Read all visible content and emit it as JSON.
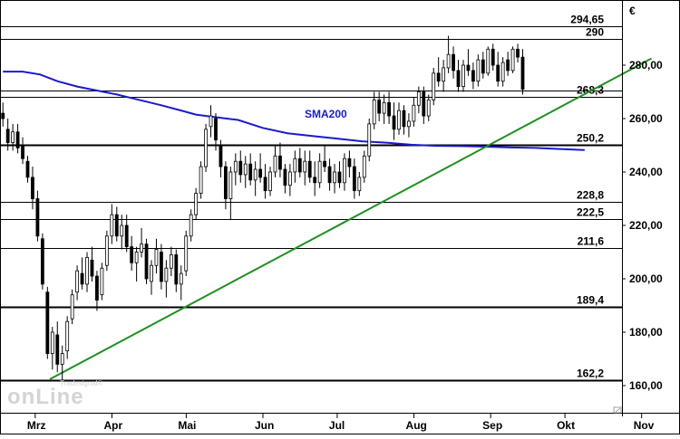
{
  "chart_data": {
    "type": "candlestick",
    "currency_label": "€",
    "y_range": [
      150,
      300
    ],
    "y_ticks": [
      {
        "value": 160,
        "label": "160,00"
      },
      {
        "value": 180,
        "label": "180,00"
      },
      {
        "value": 200,
        "label": "200,00"
      },
      {
        "value": 220,
        "label": "220,00"
      },
      {
        "value": 240,
        "label": "240,00"
      },
      {
        "value": 260,
        "label": "260,00"
      },
      {
        "value": 280,
        "label": "280,00"
      }
    ],
    "x_range_days": [
      0,
      242
    ],
    "x_ticks": [
      {
        "day": 5,
        "label": "Mrz"
      },
      {
        "day": 36,
        "label": "Apr"
      },
      {
        "day": 66,
        "label": "Mai"
      },
      {
        "day": 97,
        "label": "Jun"
      },
      {
        "day": 127,
        "label": "Jul"
      },
      {
        "day": 158,
        "label": "Aug"
      },
      {
        "day": 189,
        "label": "Sep"
      },
      {
        "day": 219,
        "label": "Okt"
      },
      {
        "day": 250,
        "label": "Nov"
      }
    ],
    "levels": [
      {
        "value": 294.65,
        "label": "294,65",
        "weight": "thin"
      },
      {
        "value": 290,
        "label": "290",
        "weight": "thin"
      },
      {
        "value": 270.5,
        "label": "",
        "weight": "thin"
      },
      {
        "value": 268.3,
        "label": "268,3",
        "weight": "thin"
      },
      {
        "value": 250.2,
        "label": "250,2",
        "weight": "thick"
      },
      {
        "value": 228.8,
        "label": "228,8",
        "weight": "thin"
      },
      {
        "value": 222.5,
        "label": "222,5",
        "weight": "thin"
      },
      {
        "value": 211.6,
        "label": "211,6",
        "weight": "thin"
      },
      {
        "value": 189.4,
        "label": "189,4",
        "weight": "thick"
      },
      {
        "value": 162.2,
        "label": "162,2",
        "weight": "thick"
      }
    ],
    "trendline": {
      "color": "#1f8f1f",
      "points": [
        {
          "day": 19,
          "value": 162.4
        },
        {
          "day": 262,
          "value": 282.5
        }
      ]
    },
    "sma200": {
      "name": "SMA200",
      "color": "#1a1acc",
      "points": [
        [
          0,
          277.6
        ],
        [
          8,
          277.6
        ],
        [
          15,
          276.5
        ],
        [
          22,
          274
        ],
        [
          30,
          272
        ],
        [
          38,
          270.5
        ],
        [
          46,
          269
        ],
        [
          55,
          267
        ],
        [
          64,
          265
        ],
        [
          72,
          263
        ],
        [
          78,
          261.5
        ],
        [
          86,
          260.5
        ],
        [
          95,
          259.5
        ],
        [
          105,
          256.5
        ],
        [
          115,
          254.5
        ],
        [
          125,
          253.5
        ],
        [
          135,
          252.5
        ],
        [
          145,
          251.5
        ],
        [
          155,
          251
        ],
        [
          165,
          250.2
        ],
        [
          175,
          249.8
        ],
        [
          185,
          249.7
        ],
        [
          195,
          249.5
        ],
        [
          205,
          249.2
        ],
        [
          215,
          249
        ],
        [
          225,
          248.6
        ],
        [
          235,
          248.2
        ]
      ]
    },
    "candles": [
      [
        0,
        262,
        266,
        257,
        260
      ],
      [
        2,
        256,
        260,
        248,
        251
      ],
      [
        4,
        251,
        258,
        248,
        255
      ],
      [
        6,
        255,
        258,
        247,
        249
      ],
      [
        8,
        250,
        253,
        243,
        245
      ],
      [
        10,
        244,
        246,
        236,
        238
      ],
      [
        12,
        238,
        242,
        226,
        230
      ],
      [
        14,
        230,
        233,
        214,
        216
      ],
      [
        16,
        215,
        217,
        196,
        198
      ],
      [
        18,
        195,
        197,
        170,
        172
      ],
      [
        20,
        172,
        182,
        166,
        180
      ],
      [
        22,
        179,
        184,
        165,
        168
      ],
      [
        24,
        168,
        175,
        162,
        172
      ],
      [
        26,
        173,
        186,
        170,
        184
      ],
      [
        28,
        185,
        196,
        183,
        194
      ],
      [
        30,
        195,
        205,
        192,
        203
      ],
      [
        32,
        202,
        208,
        196,
        198
      ],
      [
        34,
        198,
        210,
        195,
        208
      ],
      [
        36,
        207,
        212,
        199,
        201
      ],
      [
        38,
        201,
        203,
        188,
        192
      ],
      [
        40,
        194,
        206,
        192,
        204
      ],
      [
        42,
        205,
        218,
        203,
        216
      ],
      [
        44,
        216,
        228,
        213,
        224
      ],
      [
        46,
        224,
        227,
        214,
        216
      ],
      [
        48,
        216,
        224,
        211,
        220
      ],
      [
        50,
        220,
        224,
        210,
        212
      ],
      [
        52,
        212,
        216,
        203,
        206
      ],
      [
        54,
        206,
        212,
        199,
        210
      ],
      [
        56,
        210,
        219,
        208,
        213
      ],
      [
        58,
        213,
        215,
        198,
        200
      ],
      [
        60,
        199,
        207,
        194,
        205
      ],
      [
        62,
        205,
        215,
        202,
        211
      ],
      [
        64,
        210,
        213,
        196,
        199
      ],
      [
        66,
        199,
        207,
        193,
        204
      ],
      [
        68,
        204,
        212,
        201,
        209
      ],
      [
        70,
        209,
        211,
        195,
        198
      ],
      [
        72,
        198,
        205,
        192,
        202
      ],
      [
        74,
        203,
        218,
        201,
        216
      ],
      [
        76,
        216,
        226,
        214,
        224
      ],
      [
        78,
        224,
        234,
        222,
        232
      ],
      [
        80,
        232,
        244,
        230,
        242
      ],
      [
        82,
        242,
        258,
        240,
        256
      ],
      [
        84,
        257,
        265,
        253,
        261
      ],
      [
        86,
        260,
        262,
        248,
        252
      ],
      [
        88,
        250,
        252,
        238,
        242
      ],
      [
        90,
        242,
        244,
        226,
        230
      ],
      [
        92,
        230,
        242,
        222,
        240
      ],
      [
        94,
        240,
        247,
        235,
        244
      ],
      [
        96,
        244,
        248,
        236,
        239
      ],
      [
        98,
        239,
        246,
        234,
        243
      ],
      [
        100,
        243,
        247,
        235,
        237
      ],
      [
        102,
        237,
        244,
        231,
        241
      ],
      [
        104,
        241,
        247,
        236,
        238
      ],
      [
        106,
        238,
        243,
        230,
        233
      ],
      [
        108,
        233,
        242,
        231,
        240
      ],
      [
        110,
        240,
        250,
        238,
        246
      ],
      [
        112,
        246,
        251,
        238,
        241
      ],
      [
        114,
        241,
        243,
        232,
        235
      ],
      [
        116,
        235,
        243,
        231,
        240
      ],
      [
        118,
        240,
        248,
        236,
        245
      ],
      [
        120,
        245,
        249,
        238,
        240
      ],
      [
        122,
        240,
        248,
        235,
        244
      ],
      [
        124,
        244,
        248,
        236,
        238
      ],
      [
        126,
        238,
        244,
        231,
        236
      ],
      [
        128,
        236,
        247,
        234,
        244
      ],
      [
        130,
        244,
        250,
        240,
        242
      ],
      [
        132,
        242,
        245,
        233,
        236
      ],
      [
        134,
        236,
        243,
        232,
        240
      ],
      [
        136,
        240,
        244,
        234,
        236
      ],
      [
        138,
        236,
        247,
        233,
        245
      ],
      [
        140,
        245,
        248,
        238,
        242
      ],
      [
        142,
        242,
        245,
        230,
        233
      ],
      [
        144,
        233,
        240,
        231,
        238
      ],
      [
        146,
        238,
        248,
        236,
        246
      ],
      [
        148,
        246,
        260,
        244,
        258
      ],
      [
        150,
        258,
        270,
        256,
        267
      ],
      [
        152,
        267,
        270,
        259,
        262
      ],
      [
        154,
        262,
        269,
        258,
        266
      ],
      [
        156,
        266,
        270,
        258,
        261
      ],
      [
        158,
        261,
        266,
        252,
        256
      ],
      [
        160,
        256,
        266,
        254,
        263
      ],
      [
        162,
        263,
        265,
        254,
        257
      ],
      [
        164,
        257,
        262,
        253,
        259
      ],
      [
        166,
        259,
        268,
        257,
        265
      ],
      [
        168,
        265,
        272,
        262,
        270
      ],
      [
        170,
        270,
        272,
        258,
        261
      ],
      [
        172,
        261,
        269,
        259,
        267
      ],
      [
        174,
        267,
        279,
        265,
        277
      ],
      [
        176,
        277,
        283,
        272,
        274
      ],
      [
        178,
        274,
        282,
        270,
        279
      ],
      [
        180,
        279,
        291,
        277,
        284
      ],
      [
        182,
        284,
        287,
        275,
        278
      ],
      [
        184,
        278,
        282,
        270,
        272
      ],
      [
        186,
        272,
        282,
        270,
        280
      ],
      [
        188,
        280,
        286,
        276,
        278
      ],
      [
        190,
        278,
        281,
        271,
        274
      ],
      [
        192,
        274,
        284,
        272,
        282
      ],
      [
        194,
        282,
        285,
        275,
        277
      ],
      [
        196,
        277,
        287,
        276,
        286
      ],
      [
        198,
        286,
        288,
        278,
        280
      ],
      [
        200,
        280,
        285,
        272,
        274
      ],
      [
        202,
        274,
        283,
        272,
        281
      ],
      [
        204,
        282,
        285,
        276,
        278
      ],
      [
        206,
        278,
        287,
        277,
        286
      ],
      [
        208,
        286,
        288,
        281,
        283
      ],
      [
        210,
        283,
        286,
        269,
        271
      ]
    ]
  }
}
